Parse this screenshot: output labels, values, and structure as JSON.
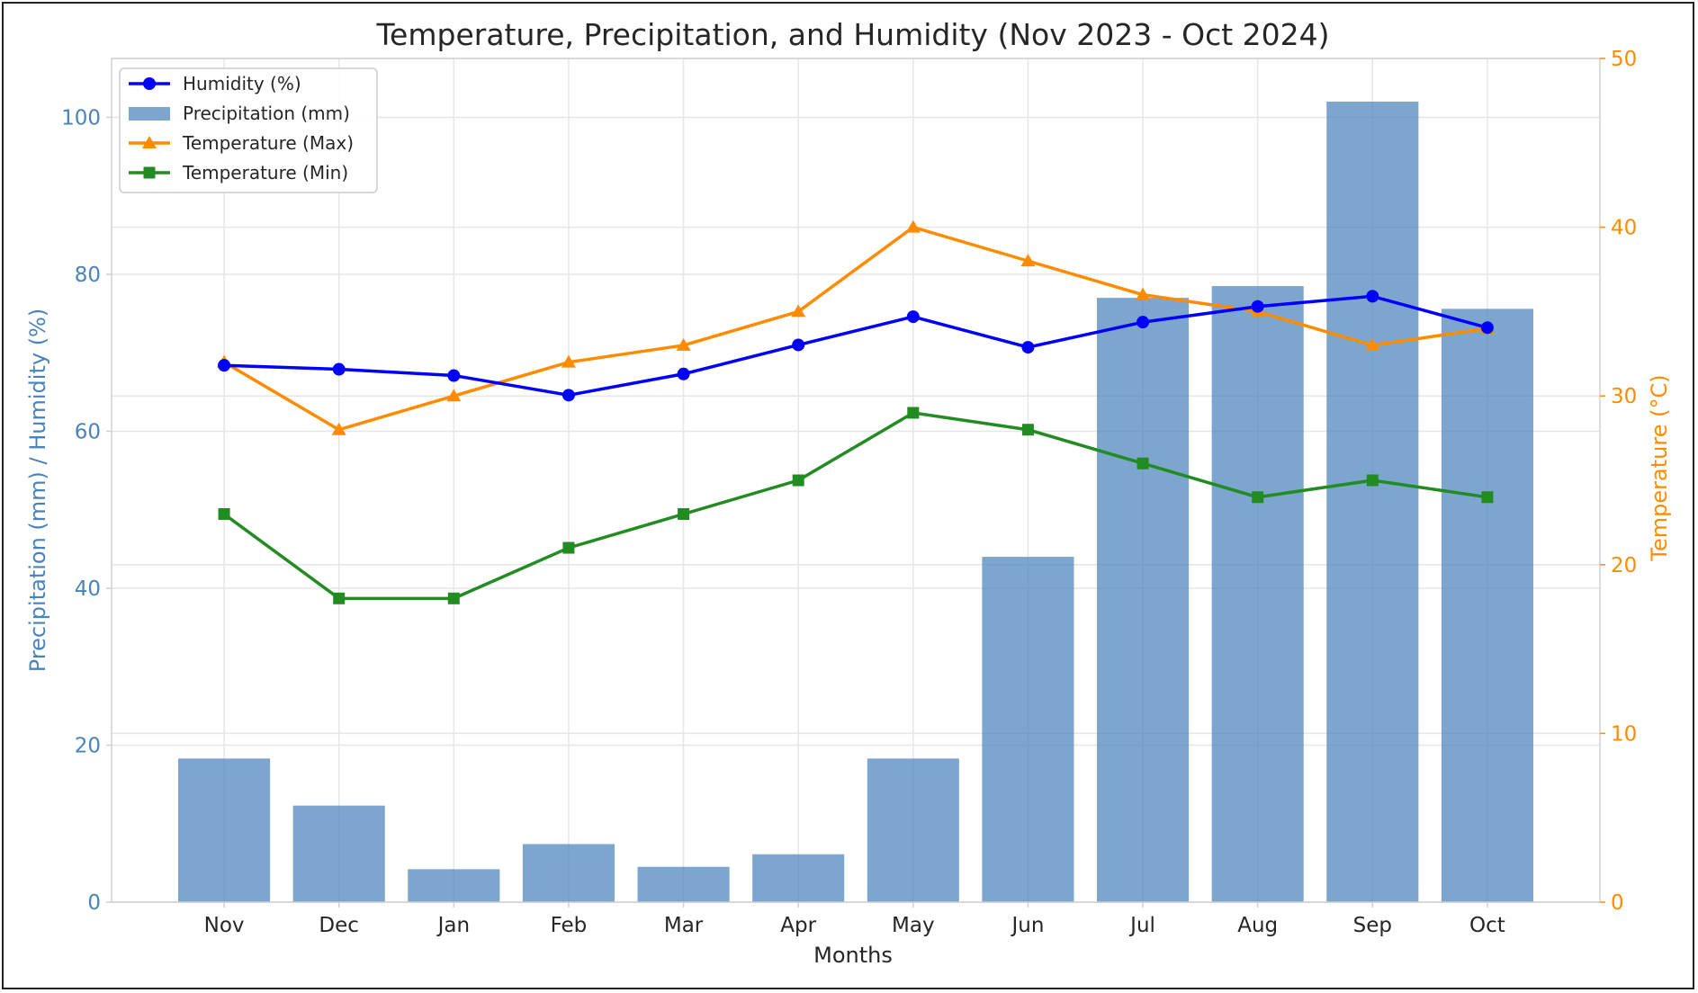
{
  "chart_data": {
    "type": "bar+line",
    "title": "Temperature, Precipitation, and Humidity (Nov 2023 - Oct 2024)",
    "xlabel": "Months",
    "ylabel_left": "Precipitation (mm) / Humidity (%)",
    "ylabel_right": "Temperature (°C)",
    "categories": [
      "Nov",
      "Dec",
      "Jan",
      "Feb",
      "Mar",
      "Apr",
      "May",
      "Jun",
      "Jul",
      "Aug",
      "Sep",
      "Oct"
    ],
    "ylim_left": [
      0,
      107.5
    ],
    "ylim_right": [
      0,
      50
    ],
    "yticks_left": [
      0,
      20,
      40,
      60,
      80,
      100
    ],
    "yticks_right": [
      0,
      10,
      20,
      30,
      40,
      50
    ],
    "grid": true,
    "legend_position": "top-left",
    "series": [
      {
        "name": "Humidity (%)",
        "kind": "line",
        "axis": "left",
        "marker": "circle",
        "color": "#0000ff",
        "values": [
          68.4,
          67.9,
          67.1,
          64.6,
          67.3,
          71.0,
          74.6,
          70.7,
          73.9,
          75.9,
          77.2,
          73.2
        ]
      },
      {
        "name": "Precipitation (mm)",
        "kind": "bar",
        "axis": "left",
        "color": "#4a83bb",
        "values": [
          18.3,
          12.3,
          4.2,
          7.4,
          4.5,
          6.1,
          18.3,
          44.0,
          77.0,
          78.5,
          102.0,
          75.6
        ]
      },
      {
        "name": "Temperature (Max)",
        "kind": "line",
        "axis": "right",
        "marker": "triangle",
        "color": "#ff8c00",
        "values": [
          32,
          28,
          30,
          32,
          33,
          35,
          40,
          38,
          36,
          35,
          33,
          34
        ]
      },
      {
        "name": "Temperature (Min)",
        "kind": "line",
        "axis": "right",
        "marker": "square",
        "color": "#228b22",
        "values": [
          23,
          18,
          18,
          21,
          23,
          25,
          29,
          28,
          26,
          24,
          25,
          24
        ]
      }
    ],
    "colors": {
      "left_axis": "#4a83bb",
      "right_axis": "#ff8c00",
      "grid": "#e6e6e6",
      "spine": "#d0d0d0",
      "text": "#262626"
    }
  }
}
